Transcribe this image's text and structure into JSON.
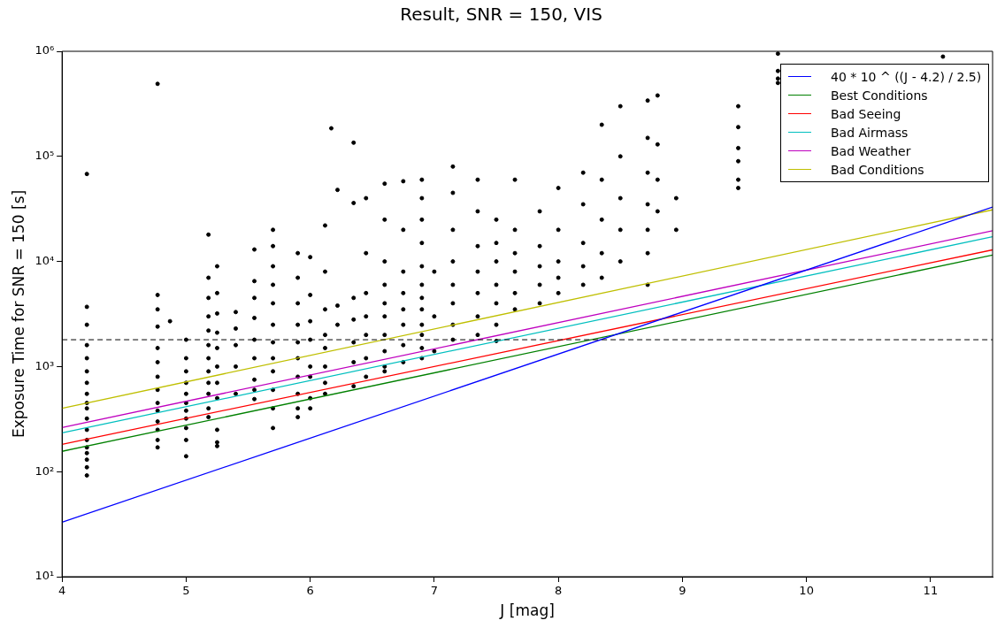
{
  "chart_data": {
    "type": "scatter",
    "title": "Result, SNR = 150, VIS",
    "xlabel": "J [mag]",
    "ylabel": "Exposure Time for SNR = 150 [s]",
    "xlim": [
      4,
      11.5
    ],
    "xticks": [
      4,
      5,
      6,
      7,
      8,
      9,
      10,
      11
    ],
    "ylim": [
      10,
      1000000
    ],
    "yticks": [
      {
        "value": 10,
        "label": "10¹"
      },
      {
        "value": 100,
        "label": "10²"
      },
      {
        "value": 1000,
        "label": "10³"
      },
      {
        "value": 10000,
        "label": "10⁴"
      },
      {
        "value": 100000,
        "label": "10⁵"
      },
      {
        "value": 1000000,
        "label": "10⁶"
      }
    ],
    "log": "y",
    "grid": false,
    "legend": "top right",
    "marker": "circle",
    "ref_lines": [
      {
        "axis": "y",
        "value": 1800,
        "color": "#000000",
        "line_style": "dashed"
      }
    ],
    "series": [
      {
        "type": "scatter",
        "color": "#000000",
        "x": [
          4.2,
          4.2,
          4.2,
          4.2,
          4.2,
          4.2,
          4.2,
          4.2,
          4.2,
          4.2,
          4.2,
          4.2,
          4.2,
          4.2,
          4.2,
          4.2,
          4.2,
          4.2,
          4.77,
          4.77,
          4.77,
          4.77,
          4.77,
          4.77,
          4.77,
          4.77,
          4.77,
          4.77,
          4.77,
          4.77,
          4.77,
          4.77,
          4.87,
          5.0,
          5.0,
          5.0,
          5.0,
          5.0,
          5.0,
          5.0,
          5.0,
          5.0,
          5.0,
          5.0,
          5.18,
          5.18,
          5.18,
          5.18,
          5.18,
          5.18,
          5.18,
          5.18,
          5.18,
          5.18,
          5.18,
          5.18,
          5.25,
          5.25,
          5.25,
          5.25,
          5.25,
          5.25,
          5.25,
          5.25,
          5.25,
          5.25,
          5.25,
          5.4,
          5.4,
          5.4,
          5.4,
          5.4,
          5.55,
          5.55,
          5.55,
          5.55,
          5.55,
          5.55,
          5.55,
          5.55,
          5.55,
          5.7,
          5.7,
          5.7,
          5.7,
          5.7,
          5.7,
          5.7,
          5.7,
          5.7,
          5.7,
          5.7,
          5.7,
          5.9,
          5.9,
          5.9,
          5.9,
          5.9,
          5.9,
          5.9,
          5.9,
          5.9,
          5.9,
          6.0,
          6.0,
          6.0,
          6.0,
          6.0,
          6.0,
          6.0,
          6.0,
          6.12,
          6.12,
          6.12,
          6.12,
          6.12,
          6.12,
          6.12,
          6.12,
          6.17,
          6.22,
          6.22,
          6.22,
          6.35,
          6.35,
          6.35,
          6.35,
          6.35,
          6.35,
          6.35,
          6.45,
          6.45,
          6.45,
          6.45,
          6.45,
          6.45,
          6.45,
          6.6,
          6.6,
          6.6,
          6.6,
          6.6,
          6.6,
          6.6,
          6.6,
          6.6,
          6.6,
          6.75,
          6.75,
          6.75,
          6.75,
          6.75,
          6.75,
          6.75,
          6.75,
          6.9,
          6.9,
          6.9,
          6.9,
          6.9,
          6.9,
          6.9,
          6.9,
          6.9,
          6.9,
          6.9,
          6.9,
          7.0,
          7.0,
          7.0,
          7.15,
          7.15,
          7.15,
          7.15,
          7.15,
          7.15,
          7.15,
          7.15,
          7.35,
          7.35,
          7.35,
          7.35,
          7.35,
          7.35,
          7.35,
          7.5,
          7.5,
          7.5,
          7.5,
          7.5,
          7.5,
          7.5,
          7.65,
          7.65,
          7.65,
          7.65,
          7.65,
          7.65,
          7.85,
          7.85,
          7.85,
          7.85,
          7.85,
          8.0,
          8.0,
          8.0,
          8.0,
          8.0,
          8.2,
          8.2,
          8.2,
          8.2,
          8.2,
          8.35,
          8.35,
          8.35,
          8.35,
          8.35,
          8.5,
          8.5,
          8.5,
          8.5,
          8.5,
          8.72,
          8.72,
          8.72,
          8.72,
          8.72,
          8.72,
          8.72,
          8.8,
          8.8,
          8.8,
          8.8,
          8.95,
          8.95,
          9.45,
          9.45,
          9.45,
          9.45,
          9.45,
          9.45,
          9.77,
          9.77,
          9.77,
          9.77,
          11.1
        ],
        "values": [
          68000,
          3700,
          2500,
          1600,
          1200,
          900,
          700,
          550,
          450,
          400,
          320,
          250,
          200,
          170,
          150,
          130,
          110,
          92,
          490000,
          4800,
          3500,
          2400,
          1500,
          1100,
          800,
          600,
          450,
          380,
          300,
          250,
          200,
          170,
          2700,
          1800,
          1200,
          900,
          700,
          550,
          450,
          380,
          320,
          260,
          200,
          140,
          18000,
          7000,
          4500,
          3000,
          2200,
          1600,
          1200,
          900,
          700,
          550,
          400,
          330,
          9000,
          5000,
          3200,
          2100,
          1500,
          1000,
          700,
          500,
          250,
          190,
          175,
          3300,
          2300,
          1600,
          1000,
          550,
          13000,
          6500,
          4500,
          2900,
          1800,
          1200,
          750,
          600,
          490,
          20000,
          14000,
          9000,
          6000,
          4000,
          2500,
          1700,
          1200,
          900,
          600,
          400,
          260,
          12000,
          7000,
          4000,
          2500,
          1700,
          1200,
          800,
          550,
          400,
          330,
          11000,
          4800,
          2700,
          1800,
          1000,
          800,
          500,
          400,
          22000,
          8000,
          3500,
          2000,
          1500,
          1000,
          700,
          550,
          185000,
          48000,
          3800,
          2500,
          135000,
          36000,
          4500,
          2800,
          1700,
          1100,
          650,
          40000,
          12000,
          5000,
          3000,
          2000,
          1200,
          800,
          55000,
          25000,
          10000,
          6000,
          4000,
          3000,
          2000,
          1400,
          1000,
          900,
          58000,
          20000,
          8000,
          5000,
          3500,
          2500,
          1600,
          1100,
          60000,
          40000,
          25000,
          15000,
          9000,
          6000,
          4500,
          3500,
          2500,
          2000,
          1500,
          1200,
          8000,
          3000,
          1400,
          80000,
          45000,
          20000,
          10000,
          6000,
          4000,
          2500,
          1800,
          60000,
          30000,
          14000,
          8000,
          5000,
          3000,
          2000,
          25000,
          15000,
          10000,
          6000,
          4000,
          2500,
          1750,
          60000,
          20000,
          12000,
          8000,
          5000,
          3500,
          30000,
          14000,
          9000,
          6000,
          4000,
          50000,
          20000,
          10000,
          7000,
          5000,
          70000,
          35000,
          15000,
          9000,
          6000,
          200000,
          60000,
          25000,
          12000,
          7000,
          300000,
          100000,
          40000,
          20000,
          10000,
          340000,
          150000,
          70000,
          35000,
          20000,
          12000,
          6000,
          380000,
          130000,
          60000,
          30000,
          40000,
          20000,
          300000,
          190000,
          120000,
          90000,
          60000,
          50000,
          950000,
          650000,
          550000,
          500000,
          890000
        ]
      },
      {
        "type": "line",
        "marker": "none",
        "name": "40 * 10 ^ ((J - 4.2) / 2.5)",
        "color": "#0000ff",
        "x": [
          4,
          11.5
        ],
        "values": [
          33,
          33000
        ]
      },
      {
        "type": "line",
        "marker": "none",
        "name": "Best Conditions",
        "color": "#008000",
        "x": [
          4,
          11.5
        ],
        "values": [
          156,
          11500
        ]
      },
      {
        "type": "line",
        "marker": "none",
        "name": "Bad Seeing",
        "color": "#ff0000",
        "x": [
          4,
          11.5
        ],
        "values": [
          182,
          12900
        ]
      },
      {
        "type": "line",
        "marker": "none",
        "name": "Bad Airmass",
        "color": "#00bfbf",
        "x": [
          4,
          11.5
        ],
        "values": [
          234,
          17200
        ]
      },
      {
        "type": "line",
        "marker": "none",
        "name": "Bad Weather",
        "color": "#bf00bf",
        "x": [
          4,
          11.5
        ],
        "values": [
          263,
          19600
        ]
      },
      {
        "type": "line",
        "marker": "none",
        "name": "Bad Conditions",
        "color": "#bfbf00",
        "x": [
          4,
          11.5
        ],
        "values": [
          400,
          31000
        ]
      }
    ]
  }
}
